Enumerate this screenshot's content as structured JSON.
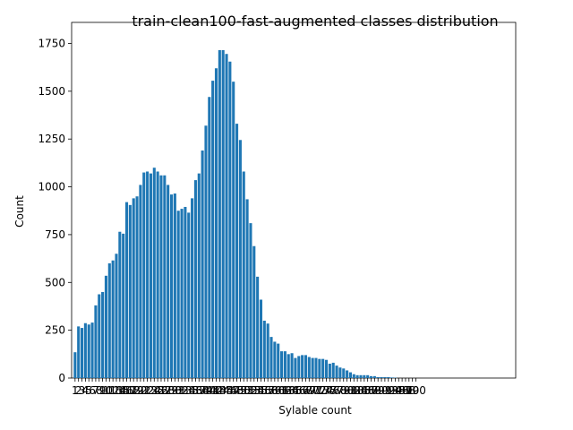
{
  "chart_data": {
    "type": "bar",
    "title": "train-clean100-fast-augmented classes distribution",
    "xlabel": "Sylable count",
    "ylabel": "Count",
    "ylim": [
      0,
      1750
    ],
    "yticks": [
      0,
      250,
      500,
      750,
      1000,
      1250,
      1500,
      1750
    ],
    "xlim": [
      0,
      129
    ],
    "bar_color": "#1f77b4",
    "categories": [
      1,
      2,
      3,
      4,
      5,
      6,
      7,
      8,
      9,
      10,
      11,
      12,
      13,
      14,
      15,
      16,
      17,
      18,
      19,
      20,
      21,
      22,
      23,
      24,
      25,
      26,
      27,
      28,
      29,
      30,
      31,
      32,
      33,
      34,
      35,
      36,
      37,
      38,
      39,
      40,
      41,
      42,
      43,
      44,
      45,
      46,
      47,
      48,
      49,
      50,
      51,
      52,
      53,
      54,
      55,
      56,
      57,
      58,
      59,
      60,
      61,
      62,
      63,
      64,
      65,
      66,
      67,
      68,
      69,
      70,
      71,
      72,
      73,
      74,
      75,
      76,
      77,
      78,
      79,
      80,
      81,
      82,
      83,
      84,
      85,
      86,
      87,
      88,
      89,
      90,
      91,
      92,
      93,
      94,
      95,
      96,
      97,
      98,
      99,
      100
    ],
    "values": [
      135,
      270,
      262,
      287,
      280,
      290,
      380,
      438,
      450,
      535,
      600,
      615,
      650,
      765,
      755,
      920,
      905,
      940,
      950,
      1010,
      1075,
      1080,
      1070,
      1100,
      1080,
      1060,
      1060,
      1010,
      960,
      965,
      875,
      885,
      895,
      865,
      940,
      1035,
      1070,
      1190,
      1320,
      1470,
      1555,
      1620,
      1715,
      1715,
      1695,
      1655,
      1550,
      1330,
      1245,
      1080,
      935,
      810,
      690,
      530,
      410,
      300,
      285,
      215,
      190,
      180,
      140,
      140,
      125,
      130,
      105,
      115,
      120,
      120,
      110,
      105,
      105,
      100,
      100,
      95,
      75,
      80,
      65,
      55,
      50,
      40,
      30,
      20,
      15,
      15,
      15,
      15,
      10,
      10,
      5,
      5,
      5,
      5,
      3,
      2,
      0,
      0,
      0,
      0,
      0,
      0
    ],
    "xtick_labels": [
      "1",
      "2",
      "3",
      "4",
      "5",
      "6",
      "7",
      "8",
      "9",
      "10",
      "11",
      "12",
      "13",
      "14",
      "15",
      "16",
      "17",
      "18",
      "19",
      "20",
      "21",
      "22",
      "23",
      "24",
      "25",
      "26",
      "27",
      "28",
      "29",
      "30",
      "31",
      "32",
      "33",
      "34",
      "35",
      "36",
      "37",
      "38",
      "39",
      "40",
      "41",
      "42",
      "43",
      "44",
      "45",
      "46",
      "47",
      "48",
      "49",
      "50",
      "51",
      "52",
      "53",
      "54",
      "55",
      "56",
      "57",
      "58",
      "59",
      "60",
      "61",
      "62",
      "63",
      "64",
      "65",
      "66",
      "67",
      "68",
      "69",
      "70",
      "71",
      "72",
      "73",
      "74",
      "75",
      "76",
      "77",
      "78",
      "79",
      "80",
      "81",
      "82",
      "83",
      "84",
      "85",
      "86",
      "87",
      "88",
      "89",
      "90",
      "91",
      "92",
      "93",
      "94",
      "95",
      "96",
      "97",
      "98",
      "99",
      "100"
    ]
  }
}
